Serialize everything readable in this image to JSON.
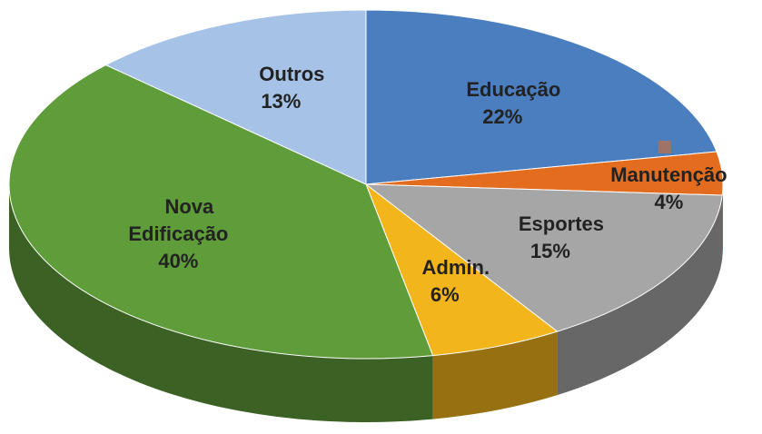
{
  "chart_data": {
    "type": "pie",
    "categories": [
      "Educação",
      "Manutenção",
      "Esportes",
      "Admin.",
      "Nova Edificação",
      "Outros"
    ],
    "values": [
      22,
      4,
      15,
      6,
      40,
      13
    ],
    "value_labels": [
      "22%",
      "4%",
      "15%",
      "6%",
      "40%",
      "13%"
    ],
    "colors": [
      "#4a7ebf",
      "#e36c1f",
      "#a6a6a6",
      "#f2b51b",
      "#5f9c3a",
      "#a6c3e7"
    ]
  }
}
